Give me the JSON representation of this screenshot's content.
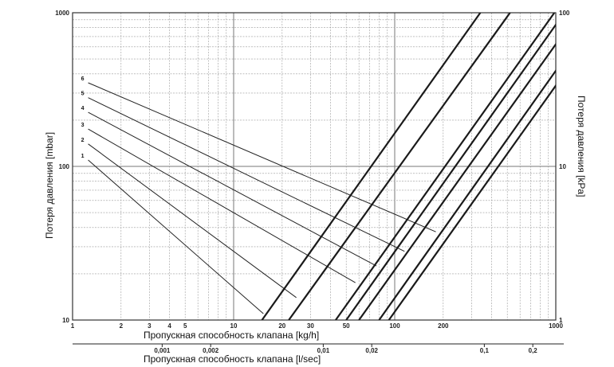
{
  "chart_data": {
    "type": "line",
    "xscale": "log",
    "yscale": "log",
    "grid": true,
    "x_axis": {
      "label": "Пропускная способность клапана [kg/h]",
      "range": [
        1,
        1000
      ],
      "tick_labels": [
        "1",
        "2",
        "3",
        "4",
        "5",
        "10",
        "20",
        "30",
        "50",
        "100",
        "200",
        "1000"
      ]
    },
    "x2_axis": {
      "label": "Пропускная способность клапана [l/sec]",
      "tick_labels": [
        "0,001",
        "0,002",
        "0,01",
        "0,02",
        "0,1",
        "0,2"
      ]
    },
    "y_axis": {
      "label": "Потеря давления [mbar]",
      "range": [
        10,
        1000
      ],
      "tick_labels": [
        "10",
        "100",
        "1000"
      ]
    },
    "y2_axis": {
      "label": "Потеря давления [kPa]",
      "tick_labels": [
        "1",
        "10",
        "100"
      ]
    },
    "setting_curves": [
      {
        "label": "1",
        "points": [
          [
            1.25,
            110
          ],
          [
            15.3,
            11
          ]
        ]
      },
      {
        "label": "2",
        "points": [
          [
            1.25,
            140
          ],
          [
            24.5,
            14
          ]
        ]
      },
      {
        "label": "3",
        "points": [
          [
            1.25,
            175
          ],
          [
            57,
            17.5
          ]
        ]
      },
      {
        "label": "4",
        "points": [
          [
            1.25,
            225
          ],
          [
            77,
            22.5
          ]
        ]
      },
      {
        "label": "5",
        "points": [
          [
            1.25,
            280
          ],
          [
            115,
            28
          ]
        ]
      },
      {
        "label": "6",
        "points": [
          [
            1.25,
            350
          ],
          [
            180,
            37.5
          ]
        ]
      }
    ],
    "flow_lines": [
      {
        "points": [
          [
            15,
            10
          ],
          [
            340,
            1000
          ]
        ]
      },
      {
        "points": [
          [
            22,
            10
          ],
          [
            520,
            1000
          ]
        ]
      },
      {
        "points": [
          [
            43,
            10
          ],
          [
            980,
            1000
          ]
        ]
      },
      {
        "points": [
          [
            50,
            10
          ],
          [
            1130,
            1000
          ]
        ]
      },
      {
        "points": [
          [
            60,
            10
          ],
          [
            1380,
            1000
          ]
        ]
      },
      {
        "points": [
          [
            80,
            10
          ],
          [
            1800,
            1000
          ]
        ]
      },
      {
        "points": [
          [
            92,
            10
          ],
          [
            2100,
            1000
          ]
        ]
      }
    ]
  },
  "tick_positions": {
    "x2": [
      0.0045,
      0.0095,
      0.05,
      0.095,
      0.5,
      1.0
    ]
  }
}
